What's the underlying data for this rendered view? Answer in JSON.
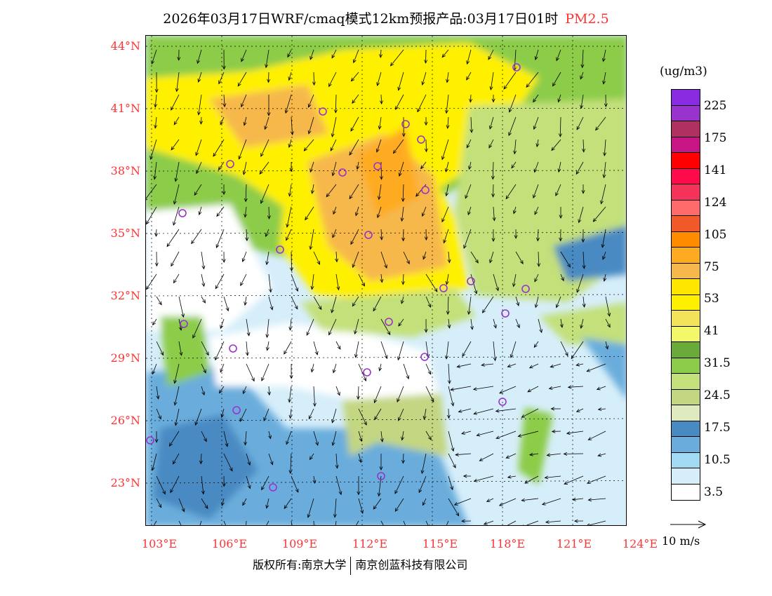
{
  "header": {
    "title": "2026年03月17日WRF/cmaq模式12km预报产品:03月17日01时",
    "species": "PM2.5"
  },
  "axes": {
    "lat_labels": [
      "44°N",
      "41°N",
      "38°N",
      "35°N",
      "32°N",
      "29°N",
      "26°N",
      "23°N"
    ],
    "lon_labels": [
      "103°E",
      "106°E",
      "109°E",
      "112°E",
      "115°E",
      "118°E",
      "121°E",
      "124°E"
    ]
  },
  "legend": {
    "units": "(ug/m3)",
    "colors": [
      "#8a2be2",
      "#9a32cd",
      "#b03060",
      "#c71585",
      "#ff0000",
      "#ff0a4a",
      "#f5335a",
      "#ff6a6a",
      "#f05a28",
      "#ff8c00",
      "#ffab22",
      "#f6b84c",
      "#ffe600",
      "#fff000",
      "#f2e35a",
      "#f3f76a",
      "#6aaa3a",
      "#8ccc4a",
      "#c3e07a",
      "#c3d681",
      "#e0eac0",
      "#4a8ac2",
      "#6aaddc",
      "#a3daf3",
      "#d6eefa",
      "#ffffff"
    ],
    "labels": [
      "225",
      "175",
      "141",
      "124",
      "105",
      "75",
      "53",
      "41",
      "31.5",
      "24.5",
      "17.5",
      "10.5",
      "3.5"
    ],
    "wind_reference": "10 m/s"
  },
  "footer": {
    "copyright": "版权所有:南京大学",
    "company": "南京创蓝科技有限公司"
  }
}
